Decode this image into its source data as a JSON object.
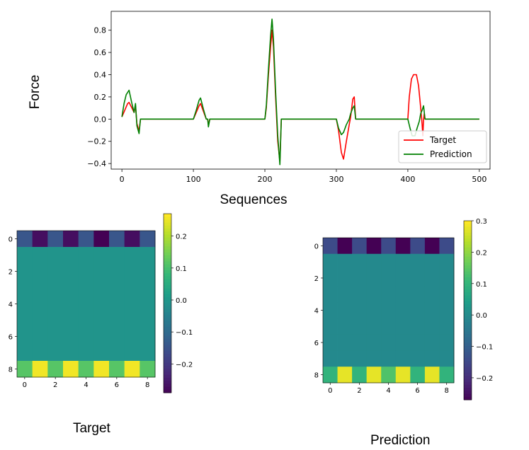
{
  "chart_data": [
    {
      "type": "line",
      "title": "",
      "xlabel": "Sequences",
      "ylabel": "Force",
      "xlim": [
        -15,
        515
      ],
      "ylim": [
        -0.45,
        0.97
      ],
      "xticks": [
        0,
        100,
        200,
        300,
        400,
        500
      ],
      "xtick_labels": [
        "0",
        "100",
        "200",
        "300",
        "400",
        "500"
      ],
      "yticks": [
        -0.4,
        -0.2,
        0.0,
        0.2,
        0.4,
        0.6,
        0.8
      ],
      "ytick_labels": [
        "−0.4",
        "−0.2",
        "0.0",
        "0.2",
        "0.4",
        "0.6",
        "0.8"
      ],
      "legend_position": "lower-right",
      "grid": false,
      "series": [
        {
          "name": "Target",
          "color": "#ff0000",
          "points": [
            [
              0,
              0.02
            ],
            [
              4,
              0.08
            ],
            [
              8,
              0.14
            ],
            [
              10,
              0.15
            ],
            [
              14,
              0.1
            ],
            [
              17,
              0.06
            ],
            [
              19,
              0.12
            ],
            [
              21,
              -0.04
            ],
            [
              24,
              -0.11
            ],
            [
              26,
              0.0
            ],
            [
              30,
              0.0
            ],
            [
              100,
              0.0
            ],
            [
              104,
              0.06
            ],
            [
              108,
              0.12
            ],
            [
              110,
              0.14
            ],
            [
              114,
              0.07
            ],
            [
              118,
              0.0
            ],
            [
              120,
              0.0
            ],
            [
              121,
              -0.05
            ],
            [
              123,
              0.0
            ],
            [
              200,
              0.0
            ],
            [
              202,
              0.1
            ],
            [
              205,
              0.4
            ],
            [
              208,
              0.65
            ],
            [
              210,
              0.8
            ],
            [
              212,
              0.65
            ],
            [
              215,
              0.2
            ],
            [
              218,
              -0.2
            ],
            [
              221,
              -0.38
            ],
            [
              223,
              0.0
            ],
            [
              300,
              0.0
            ],
            [
              303,
              -0.1
            ],
            [
              307,
              -0.3
            ],
            [
              310,
              -0.36
            ],
            [
              314,
              -0.2
            ],
            [
              318,
              -0.05
            ],
            [
              320,
              0.02
            ],
            [
              323,
              0.18
            ],
            [
              325,
              0.2
            ],
            [
              327,
              0.0
            ],
            [
              400,
              0.0
            ],
            [
              402,
              0.2
            ],
            [
              405,
              0.36
            ],
            [
              408,
              0.4
            ],
            [
              412,
              0.4
            ],
            [
              415,
              0.3
            ],
            [
              418,
              0.1
            ],
            [
              420,
              -0.05
            ],
            [
              421,
              -0.15
            ],
            [
              422,
              0.0
            ],
            [
              423,
              0.05
            ],
            [
              424,
              0.0
            ],
            [
              500,
              0.0
            ]
          ]
        },
        {
          "name": "Prediction",
          "color": "#008000",
          "points": [
            [
              0,
              0.02
            ],
            [
              3,
              0.14
            ],
            [
              6,
              0.22
            ],
            [
              10,
              0.26
            ],
            [
              14,
              0.14
            ],
            [
              17,
              0.06
            ],
            [
              19,
              0.14
            ],
            [
              21,
              -0.06
            ],
            [
              24,
              -0.13
            ],
            [
              26,
              0.0
            ],
            [
              30,
              0.0
            ],
            [
              100,
              0.0
            ],
            [
              104,
              0.08
            ],
            [
              108,
              0.17
            ],
            [
              110,
              0.19
            ],
            [
              114,
              0.09
            ],
            [
              118,
              0.0
            ],
            [
              120,
              0.0
            ],
            [
              121,
              -0.07
            ],
            [
              123,
              0.0
            ],
            [
              200,
              0.0
            ],
            [
              202,
              0.12
            ],
            [
              205,
              0.45
            ],
            [
              208,
              0.75
            ],
            [
              210,
              0.9
            ],
            [
              212,
              0.72
            ],
            [
              215,
              0.25
            ],
            [
              218,
              -0.15
            ],
            [
              221,
              -0.41
            ],
            [
              223,
              0.0
            ],
            [
              300,
              0.0
            ],
            [
              303,
              -0.08
            ],
            [
              307,
              -0.14
            ],
            [
              310,
              -0.12
            ],
            [
              314,
              -0.05
            ],
            [
              318,
              0.0
            ],
            [
              320,
              0.05
            ],
            [
              323,
              0.1
            ],
            [
              325,
              0.12
            ],
            [
              327,
              0.0
            ],
            [
              400,
              0.0
            ],
            [
              403,
              -0.08
            ],
            [
              406,
              -0.15
            ],
            [
              410,
              -0.15
            ],
            [
              413,
              -0.08
            ],
            [
              416,
              -0.02
            ],
            [
              418,
              0.05
            ],
            [
              420,
              0.08
            ],
            [
              422,
              0.12
            ],
            [
              424,
              0.0
            ],
            [
              500,
              0.0
            ]
          ]
        }
      ]
    },
    {
      "type": "heatmap",
      "caption": "Target",
      "vmin": -0.29,
      "vmax": 0.27,
      "colorbar_ticks": [
        -0.2,
        -0.1,
        0.0,
        0.1,
        0.2
      ],
      "colorbar_tick_labels": [
        "−0.2",
        "−0.1",
        "0.0",
        "0.1",
        "0.2"
      ],
      "xticks": [
        0,
        2,
        4,
        6,
        8
      ],
      "yticks": [
        0,
        2,
        4,
        6,
        8
      ],
      "matrix": [
        [
          -0.14,
          -0.27,
          -0.14,
          -0.27,
          -0.14,
          -0.29,
          -0.14,
          -0.27,
          -0.14
        ],
        [
          0,
          0,
          0,
          0,
          0,
          0,
          0,
          0,
          0
        ],
        [
          0,
          0,
          0,
          0,
          0,
          0,
          0,
          0,
          0
        ],
        [
          0,
          0,
          0,
          0,
          0,
          0,
          0,
          0,
          0
        ],
        [
          0,
          0,
          0,
          0,
          0,
          0,
          0,
          0,
          0
        ],
        [
          0,
          0,
          0,
          0,
          0,
          0,
          0,
          0,
          0
        ],
        [
          0,
          0,
          0,
          0,
          0,
          0,
          0,
          0,
          0
        ],
        [
          0,
          0,
          0,
          0,
          0,
          0,
          0,
          0,
          0
        ],
        [
          0.12,
          0.26,
          0.12,
          0.26,
          0.12,
          0.26,
          0.12,
          0.26,
          0.12
        ]
      ]
    },
    {
      "type": "heatmap",
      "caption": "Prediction",
      "vmin": -0.27,
      "vmax": 0.3,
      "colorbar_ticks": [
        -0.2,
        -0.1,
        0.0,
        0.1,
        0.2,
        0.3
      ],
      "colorbar_tick_labels": [
        "−0.2",
        "−0.1",
        "0.0",
        "0.1",
        "0.2",
        "0.3"
      ],
      "xticks": [
        0,
        2,
        4,
        6,
        8
      ],
      "yticks": [
        0,
        2,
        4,
        6,
        8
      ],
      "matrix": [
        [
          -0.14,
          -0.27,
          -0.14,
          -0.27,
          -0.14,
          -0.27,
          -0.14,
          -0.27,
          -0.14
        ],
        [
          0,
          0,
          0,
          0,
          0,
          0,
          0,
          0,
          0
        ],
        [
          0,
          0,
          0,
          0,
          0,
          0,
          0,
          0,
          0
        ],
        [
          0,
          0,
          0,
          0,
          0,
          0,
          0,
          0,
          0
        ],
        [
          0,
          0,
          0,
          0,
          0,
          0,
          0,
          0,
          0
        ],
        [
          0,
          0,
          0,
          0,
          0,
          0,
          0,
          0,
          0
        ],
        [
          0,
          0,
          0,
          0,
          0,
          0,
          0,
          0,
          0
        ],
        [
          0,
          0,
          0,
          0,
          0,
          0,
          0,
          0,
          0
        ],
        [
          0.1,
          0.28,
          0.1,
          0.28,
          0.14,
          0.28,
          0.1,
          0.28,
          0.1
        ]
      ]
    }
  ]
}
